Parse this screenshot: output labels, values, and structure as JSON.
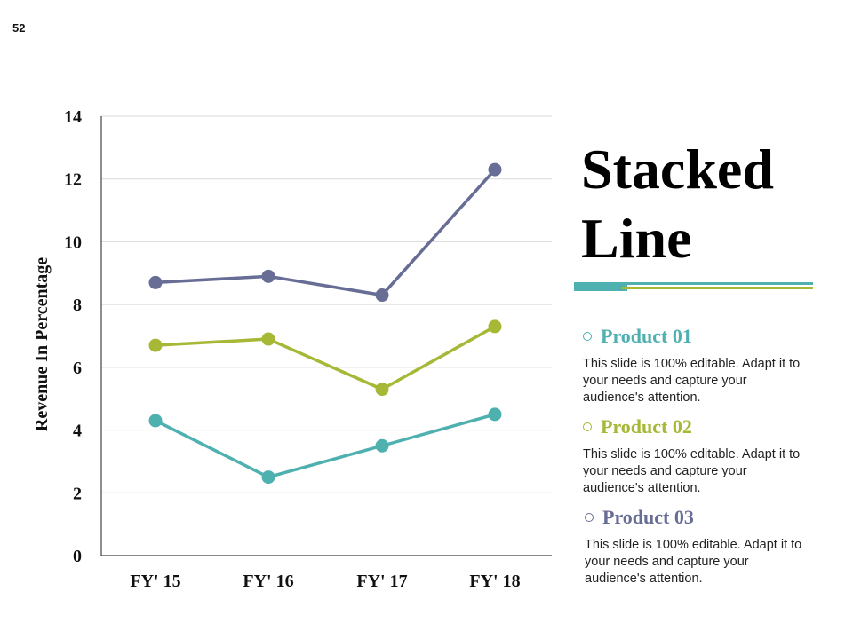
{
  "page_number": "52",
  "title": {
    "line1": "Stacked",
    "line2": "Line"
  },
  "colors": {
    "product01": "#4fb0b0",
    "product02": "#a6b836",
    "product03": "#676d95",
    "gridline": "#d9d9d9",
    "axis": "#444444"
  },
  "legend": [
    {
      "label": "Product 01",
      "description": "This slide is 100% editable. Adapt it to your needs and capture your audience's attention."
    },
    {
      "label": "Product 02",
      "description": "This slide is 100% editable. Adapt it to your needs and capture your audience's attention."
    },
    {
      "label": "Product 03",
      "description": "This slide is 100% editable. Adapt it to your needs and capture your audience's attention."
    }
  ],
  "chart_data": {
    "type": "line",
    "title": "Stacked Line",
    "xlabel": "",
    "ylabel": "Revenue In Percentage",
    "categories": [
      "FY' 15",
      "FY' 16",
      "FY' 17",
      "FY' 18"
    ],
    "ylim": [
      0,
      14
    ],
    "yticks": [
      0,
      2,
      4,
      6,
      8,
      10,
      12,
      14
    ],
    "grid": true,
    "series": [
      {
        "name": "Product 01",
        "values": [
          4.3,
          2.5,
          3.5,
          4.5
        ]
      },
      {
        "name": "Product 02",
        "values": [
          6.7,
          6.9,
          5.3,
          7.3
        ]
      },
      {
        "name": "Product 03",
        "values": [
          8.7,
          8.9,
          8.3,
          12.3
        ]
      }
    ]
  }
}
